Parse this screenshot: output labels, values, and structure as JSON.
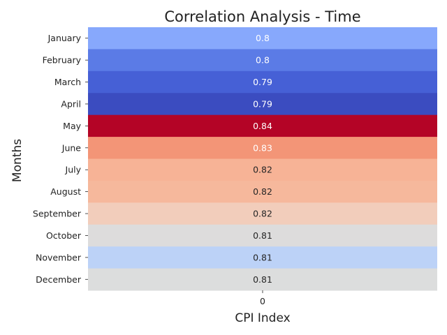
{
  "chart_data": {
    "type": "heatmap",
    "title": "Correlation Analysis - Time",
    "xlabel": "CPI Index",
    "ylabel": "Months",
    "x_categories": [
      "0"
    ],
    "y_categories": [
      "January",
      "February",
      "March",
      "April",
      "May",
      "June",
      "July",
      "August",
      "September",
      "October",
      "November",
      "December"
    ],
    "values": [
      {
        "month": "January",
        "value": 0.8,
        "label": "0.8",
        "color": "#87a8fc"
      },
      {
        "month": "February",
        "value": 0.8,
        "label": "0.8",
        "color": "#5b7be6"
      },
      {
        "month": "March",
        "value": 0.79,
        "label": "0.79",
        "color": "#4660d6"
      },
      {
        "month": "April",
        "value": 0.79,
        "label": "0.79",
        "color": "#3b4cc0"
      },
      {
        "month": "May",
        "value": 0.84,
        "label": "0.84",
        "color": "#b40426"
      },
      {
        "month": "June",
        "value": 0.83,
        "label": "0.83",
        "color": "#f39577"
      },
      {
        "month": "July",
        "value": 0.82,
        "label": "0.82",
        "color": "#f7b396"
      },
      {
        "month": "August",
        "value": 0.82,
        "label": "0.82",
        "color": "#f6b89c"
      },
      {
        "month": "September",
        "value": 0.82,
        "label": "0.82",
        "color": "#f2cdbb"
      },
      {
        "month": "October",
        "value": 0.81,
        "label": "0.81",
        "color": "#dddcdc"
      },
      {
        "month": "November",
        "value": 0.81,
        "label": "0.81",
        "color": "#bcd2f7"
      },
      {
        "month": "December",
        "value": 0.81,
        "label": "0.81",
        "color": "#dcdddd"
      }
    ],
    "colormap": "coolwarm",
    "colorbar": false
  }
}
